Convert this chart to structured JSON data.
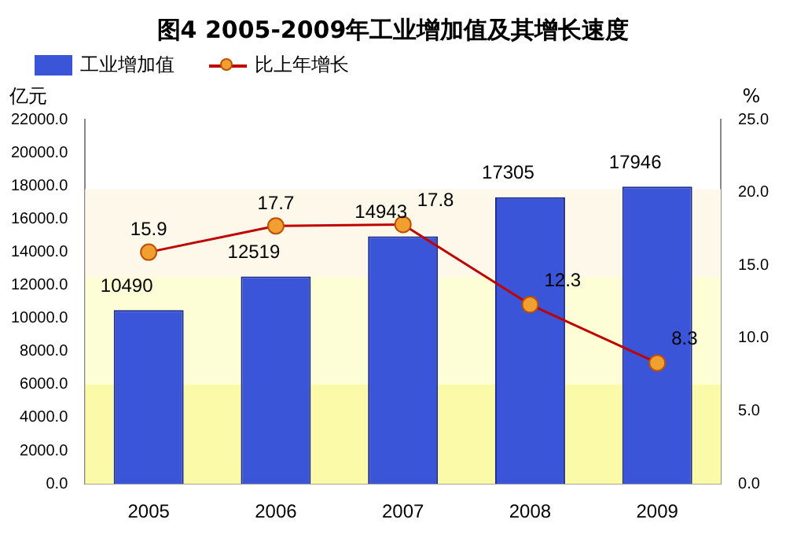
{
  "chart_data": {
    "type": "bar",
    "title": "图4 2005-2009年工业增加值及其增长速度",
    "ylabel": "亿元",
    "y2label": "%",
    "categories": [
      "2005",
      "2006",
      "2007",
      "2008",
      "2009"
    ],
    "series": [
      {
        "name": "工业增加值",
        "color": "#3a55d8",
        "values": [
          10490,
          12519,
          14943,
          17305,
          17946
        ]
      },
      {
        "name": "比上年增长",
        "type": "line",
        "axis": "y2",
        "color": "#c00000",
        "marker": "circle",
        "values": [
          15.9,
          17.7,
          17.8,
          12.3,
          8.3
        ]
      }
    ],
    "ylim": [
      0,
      22000
    ],
    "yticks": [
      {
        "value": 0,
        "label": "0.0"
      },
      {
        "value": 2000,
        "label": "2000.0"
      },
      {
        "value": 4000,
        "label": "4000.0"
      },
      {
        "value": 6000,
        "label": "6000.0"
      },
      {
        "value": 8000,
        "label": "8000.0"
      },
      {
        "value": 10000,
        "label": "10000.0"
      },
      {
        "value": 12000,
        "label": "12000.0"
      },
      {
        "value": 14000,
        "label": "14000.0"
      },
      {
        "value": 16000,
        "label": "16000.0"
      },
      {
        "value": 18000,
        "label": "18000.0"
      },
      {
        "value": 20000,
        "label": "20000.0"
      },
      {
        "value": 22000,
        "label": "22000.0"
      }
    ],
    "y2lim": [
      0,
      25
    ],
    "y2ticks": [
      {
        "value": 0,
        "label": "0.0"
      },
      {
        "value": 5,
        "label": "5.0"
      },
      {
        "value": 10,
        "label": "10.0"
      },
      {
        "value": 15,
        "label": "15.0"
      },
      {
        "value": 20,
        "label": "20.0"
      },
      {
        "value": 25,
        "label": "25.0"
      }
    ],
    "bands": [
      {
        "axis": "y",
        "from": 0,
        "to": 6000,
        "color": "#fafaa8"
      },
      {
        "axis": "y",
        "from": 6000,
        "to": 12500,
        "color": "#fdfdd6"
      },
      {
        "axis": "y",
        "from": 12500,
        "to": 17800,
        "color": "#fdf8ea"
      }
    ],
    "data_labels": true,
    "legend": "top left",
    "grid": false
  }
}
